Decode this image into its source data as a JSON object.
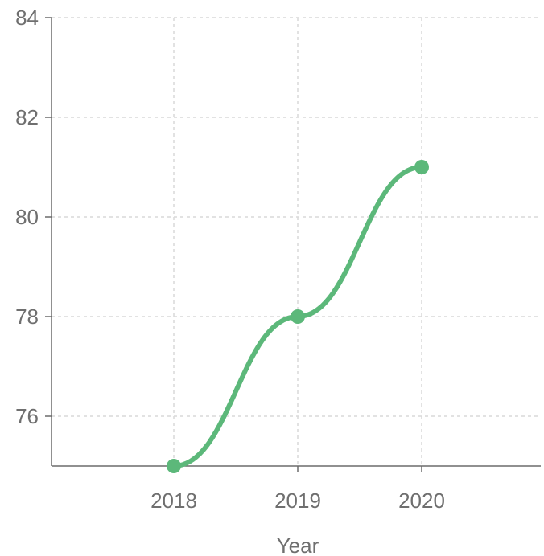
{
  "chart_data": {
    "type": "line",
    "title": "",
    "xlabel": "Year",
    "ylabel": "",
    "categories": [
      "2018",
      "2019",
      "2020"
    ],
    "series": [
      {
        "values": [
          75,
          78,
          81
        ],
        "color": "#5cb87a"
      }
    ],
    "ylim": [
      75,
      84
    ],
    "yticks": [
      76,
      78,
      80,
      82,
      84
    ],
    "grid": true,
    "smooth": true,
    "legend": "none"
  }
}
